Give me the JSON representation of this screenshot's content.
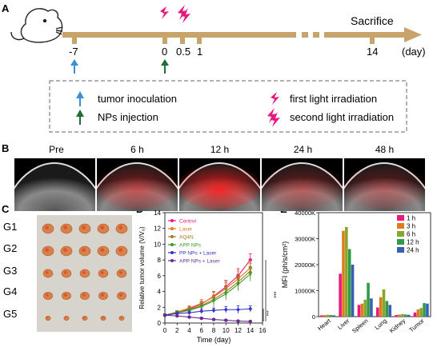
{
  "panels": {
    "A": "A",
    "B": "B",
    "C": "C",
    "D": "D",
    "E": "E"
  },
  "timeline": {
    "ticks": [
      "-7",
      "0",
      "0.5",
      "1",
      "14"
    ],
    "unit": "(day)",
    "end_label": "Sacrifice"
  },
  "legend_box": {
    "tumor": "tumor  inoculation",
    "nps": "NPs injection",
    "first": "first light irradiation",
    "second": "second light irradiation"
  },
  "imaging": {
    "labels": [
      "Pre",
      "6 h",
      "12 h",
      "24 h",
      "48 h"
    ],
    "signal_level": [
      0.0,
      0.5,
      0.9,
      0.4,
      0.35
    ]
  },
  "photo": {
    "groups": [
      "G1",
      "G2",
      "G3",
      "G4",
      "G5"
    ],
    "tumor_size": [
      1.0,
      1.0,
      0.85,
      0.8,
      0.45
    ]
  },
  "chart_data": [
    {
      "type": "line",
      "panel": "D",
      "xlabel": "Time (day)",
      "ylabel": "Relative tumor volume (V/V₀)",
      "x": [
        0,
        2,
        4,
        6,
        8,
        10,
        12,
        14
      ],
      "xticks": [
        "0",
        "2",
        "4",
        "6",
        "8",
        "10",
        "12",
        "14",
        "16"
      ],
      "yticks": [
        "0",
        "2",
        "4",
        "6",
        "8",
        "10",
        "12",
        "14"
      ],
      "xlim": [
        0,
        16
      ],
      "ylim": [
        0,
        14
      ],
      "significance": [
        "***",
        "***"
      ],
      "series": [
        {
          "name": "Control",
          "color": "#e8197d",
          "marker": "circle",
          "values": [
            1.0,
            1.3,
            1.8,
            2.4,
            3.4,
            4.6,
            6.0,
            8.0
          ],
          "err": [
            0.1,
            0.2,
            0.3,
            0.4,
            0.6,
            0.8,
            0.9,
            0.8
          ]
        },
        {
          "name": "Laser",
          "color": "#e07a1f",
          "marker": "square",
          "values": [
            1.0,
            1.4,
            1.9,
            2.5,
            3.3,
            4.4,
            5.6,
            7.0
          ],
          "err": [
            0.1,
            0.2,
            0.3,
            0.5,
            0.6,
            0.9,
            1.0,
            0.9
          ]
        },
        {
          "name": "AQ4N",
          "color": "#a07a20",
          "marker": "triangle",
          "values": [
            1.0,
            1.3,
            1.7,
            2.2,
            3.0,
            4.0,
            5.2,
            6.6
          ],
          "err": [
            0.1,
            0.2,
            0.3,
            0.4,
            1.0,
            1.1,
            1.0,
            1.0
          ]
        },
        {
          "name": "APP NPs",
          "color": "#3a9a2a",
          "marker": "triangle-down",
          "values": [
            1.0,
            1.3,
            1.6,
            2.1,
            2.8,
            3.7,
            4.9,
            6.2
          ],
          "err": [
            0.1,
            0.2,
            0.3,
            0.4,
            0.5,
            0.6,
            0.8,
            0.9
          ]
        },
        {
          "name": "PP NPs + Laser",
          "color": "#3333cc",
          "marker": "diamond",
          "values": [
            1.0,
            1.2,
            1.3,
            1.5,
            1.6,
            1.7,
            1.7,
            1.8
          ],
          "err": [
            0.1,
            0.2,
            0.2,
            0.3,
            0.3,
            0.4,
            0.5,
            0.4
          ]
        },
        {
          "name": "APP NPs + Laser",
          "color": "#6a2c91",
          "marker": "circle",
          "values": [
            1.0,
            0.9,
            0.75,
            0.6,
            0.45,
            0.35,
            0.25,
            0.2
          ],
          "err": [
            0.1,
            0.1,
            0.1,
            0.1,
            0.1,
            0.1,
            0.1,
            0.1
          ]
        }
      ]
    },
    {
      "type": "bar",
      "panel": "E",
      "ylabel": "MFI (ph/s/cm²)",
      "categories": [
        "Heart",
        "Liver",
        "Spleen",
        "Lung",
        "Kidney",
        "Tumor"
      ],
      "yticks": [
        "0",
        "10000K",
        "20000K",
        "30000K",
        "40000K"
      ],
      "ylim": [
        0,
        40000
      ],
      "series": [
        {
          "name": "1 h",
          "color": "#e8197d",
          "values": [
            500,
            16500,
            4500,
            3500,
            600,
            1600
          ]
        },
        {
          "name": "3 h",
          "color": "#e07a1f",
          "values": [
            600,
            33000,
            5000,
            7500,
            800,
            2800
          ]
        },
        {
          "name": "6 h",
          "color": "#8aa62a",
          "values": [
            700,
            34500,
            6500,
            10500,
            1000,
            3300
          ]
        },
        {
          "name": "12 h",
          "color": "#2e9a4a",
          "values": [
            600,
            26000,
            13000,
            6000,
            800,
            5200
          ]
        },
        {
          "name": "24 h",
          "color": "#3a5fb0",
          "values": [
            500,
            20000,
            7000,
            4500,
            700,
            5000
          ]
        }
      ]
    }
  ]
}
